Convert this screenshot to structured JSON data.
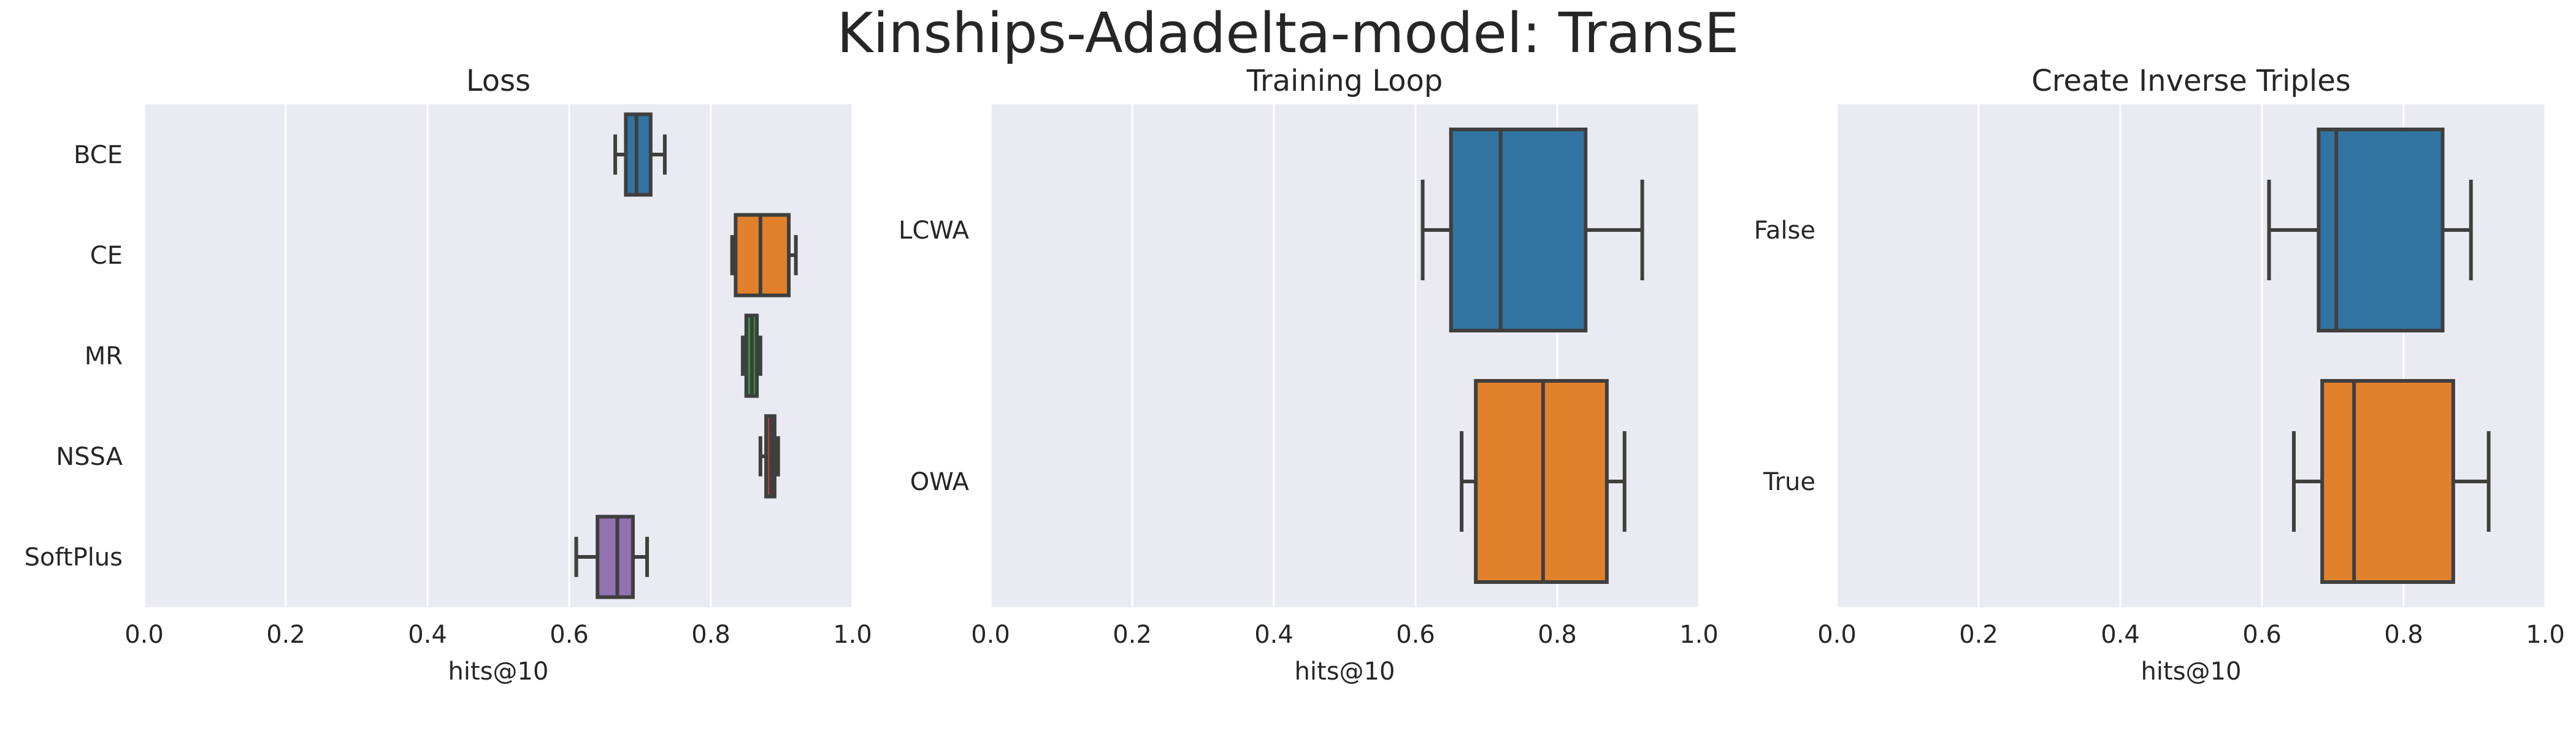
{
  "title": "Kinships-Adadelta-model: TransE",
  "colors": {
    "background": "#EAEAF2",
    "grid": "#FFFFFF",
    "box_edge": "#3F3F3F",
    "blue": "#3274A1",
    "orange": "#E1812C",
    "green": "#3A923A",
    "red": "#C03D3E",
    "purple": "#9372B2"
  },
  "chart_data": [
    {
      "type": "box",
      "orientation": "horizontal",
      "title": "Loss",
      "xlabel": "hits@10",
      "ylabel": "",
      "xlim": [
        0.0,
        1.0
      ],
      "xticks": [
        "0.0",
        "0.2",
        "0.4",
        "0.6",
        "0.8",
        "1.0"
      ],
      "grid": true,
      "categories": [
        "BCE",
        "CE",
        "MR",
        "NSSA",
        "SoftPlus"
      ],
      "boxes": [
        {
          "category": "BCE",
          "whislo": 0.665,
          "q1": 0.68,
          "med": 0.695,
          "q3": 0.715,
          "whishi": 0.735,
          "color": "#3274A1"
        },
        {
          "category": "CE",
          "whislo": 0.83,
          "q1": 0.835,
          "med": 0.87,
          "q3": 0.91,
          "whishi": 0.92,
          "color": "#E1812C"
        },
        {
          "category": "MR",
          "whislo": 0.845,
          "q1": 0.85,
          "med": 0.858,
          "q3": 0.865,
          "whishi": 0.87,
          "color": "#3A923A"
        },
        {
          "category": "NSSA",
          "whislo": 0.87,
          "q1": 0.878,
          "med": 0.885,
          "q3": 0.89,
          "whishi": 0.895,
          "color": "#C03D3E"
        },
        {
          "category": "SoftPlus",
          "whislo": 0.61,
          "q1": 0.64,
          "med": 0.668,
          "q3": 0.69,
          "whishi": 0.71,
          "color": "#9372B2"
        }
      ]
    },
    {
      "type": "box",
      "orientation": "horizontal",
      "title": "Training Loop",
      "xlabel": "hits@10",
      "ylabel": "",
      "xlim": [
        0.0,
        1.0
      ],
      "xticks": [
        "0.0",
        "0.2",
        "0.4",
        "0.6",
        "0.8",
        "1.0"
      ],
      "grid": true,
      "categories": [
        "LCWA",
        "OWA"
      ],
      "boxes": [
        {
          "category": "LCWA",
          "whislo": 0.61,
          "q1": 0.65,
          "med": 0.72,
          "q3": 0.84,
          "whishi": 0.92,
          "color": "#3274A1"
        },
        {
          "category": "OWA",
          "whislo": 0.665,
          "q1": 0.685,
          "med": 0.78,
          "q3": 0.87,
          "whishi": 0.895,
          "color": "#E1812C"
        }
      ]
    },
    {
      "type": "box",
      "orientation": "horizontal",
      "title": "Create Inverse Triples",
      "xlabel": "hits@10",
      "ylabel": "",
      "xlim": [
        0.0,
        1.0
      ],
      "xticks": [
        "0.0",
        "0.2",
        "0.4",
        "0.6",
        "0.8",
        "1.0"
      ],
      "grid": true,
      "categories": [
        "False",
        "True"
      ],
      "boxes": [
        {
          "category": "False",
          "whislo": 0.61,
          "q1": 0.68,
          "med": 0.705,
          "q3": 0.855,
          "whishi": 0.895,
          "color": "#3274A1"
        },
        {
          "category": "True",
          "whislo": 0.645,
          "q1": 0.685,
          "med": 0.73,
          "q3": 0.87,
          "whishi": 0.92,
          "color": "#E1812C"
        }
      ]
    }
  ]
}
